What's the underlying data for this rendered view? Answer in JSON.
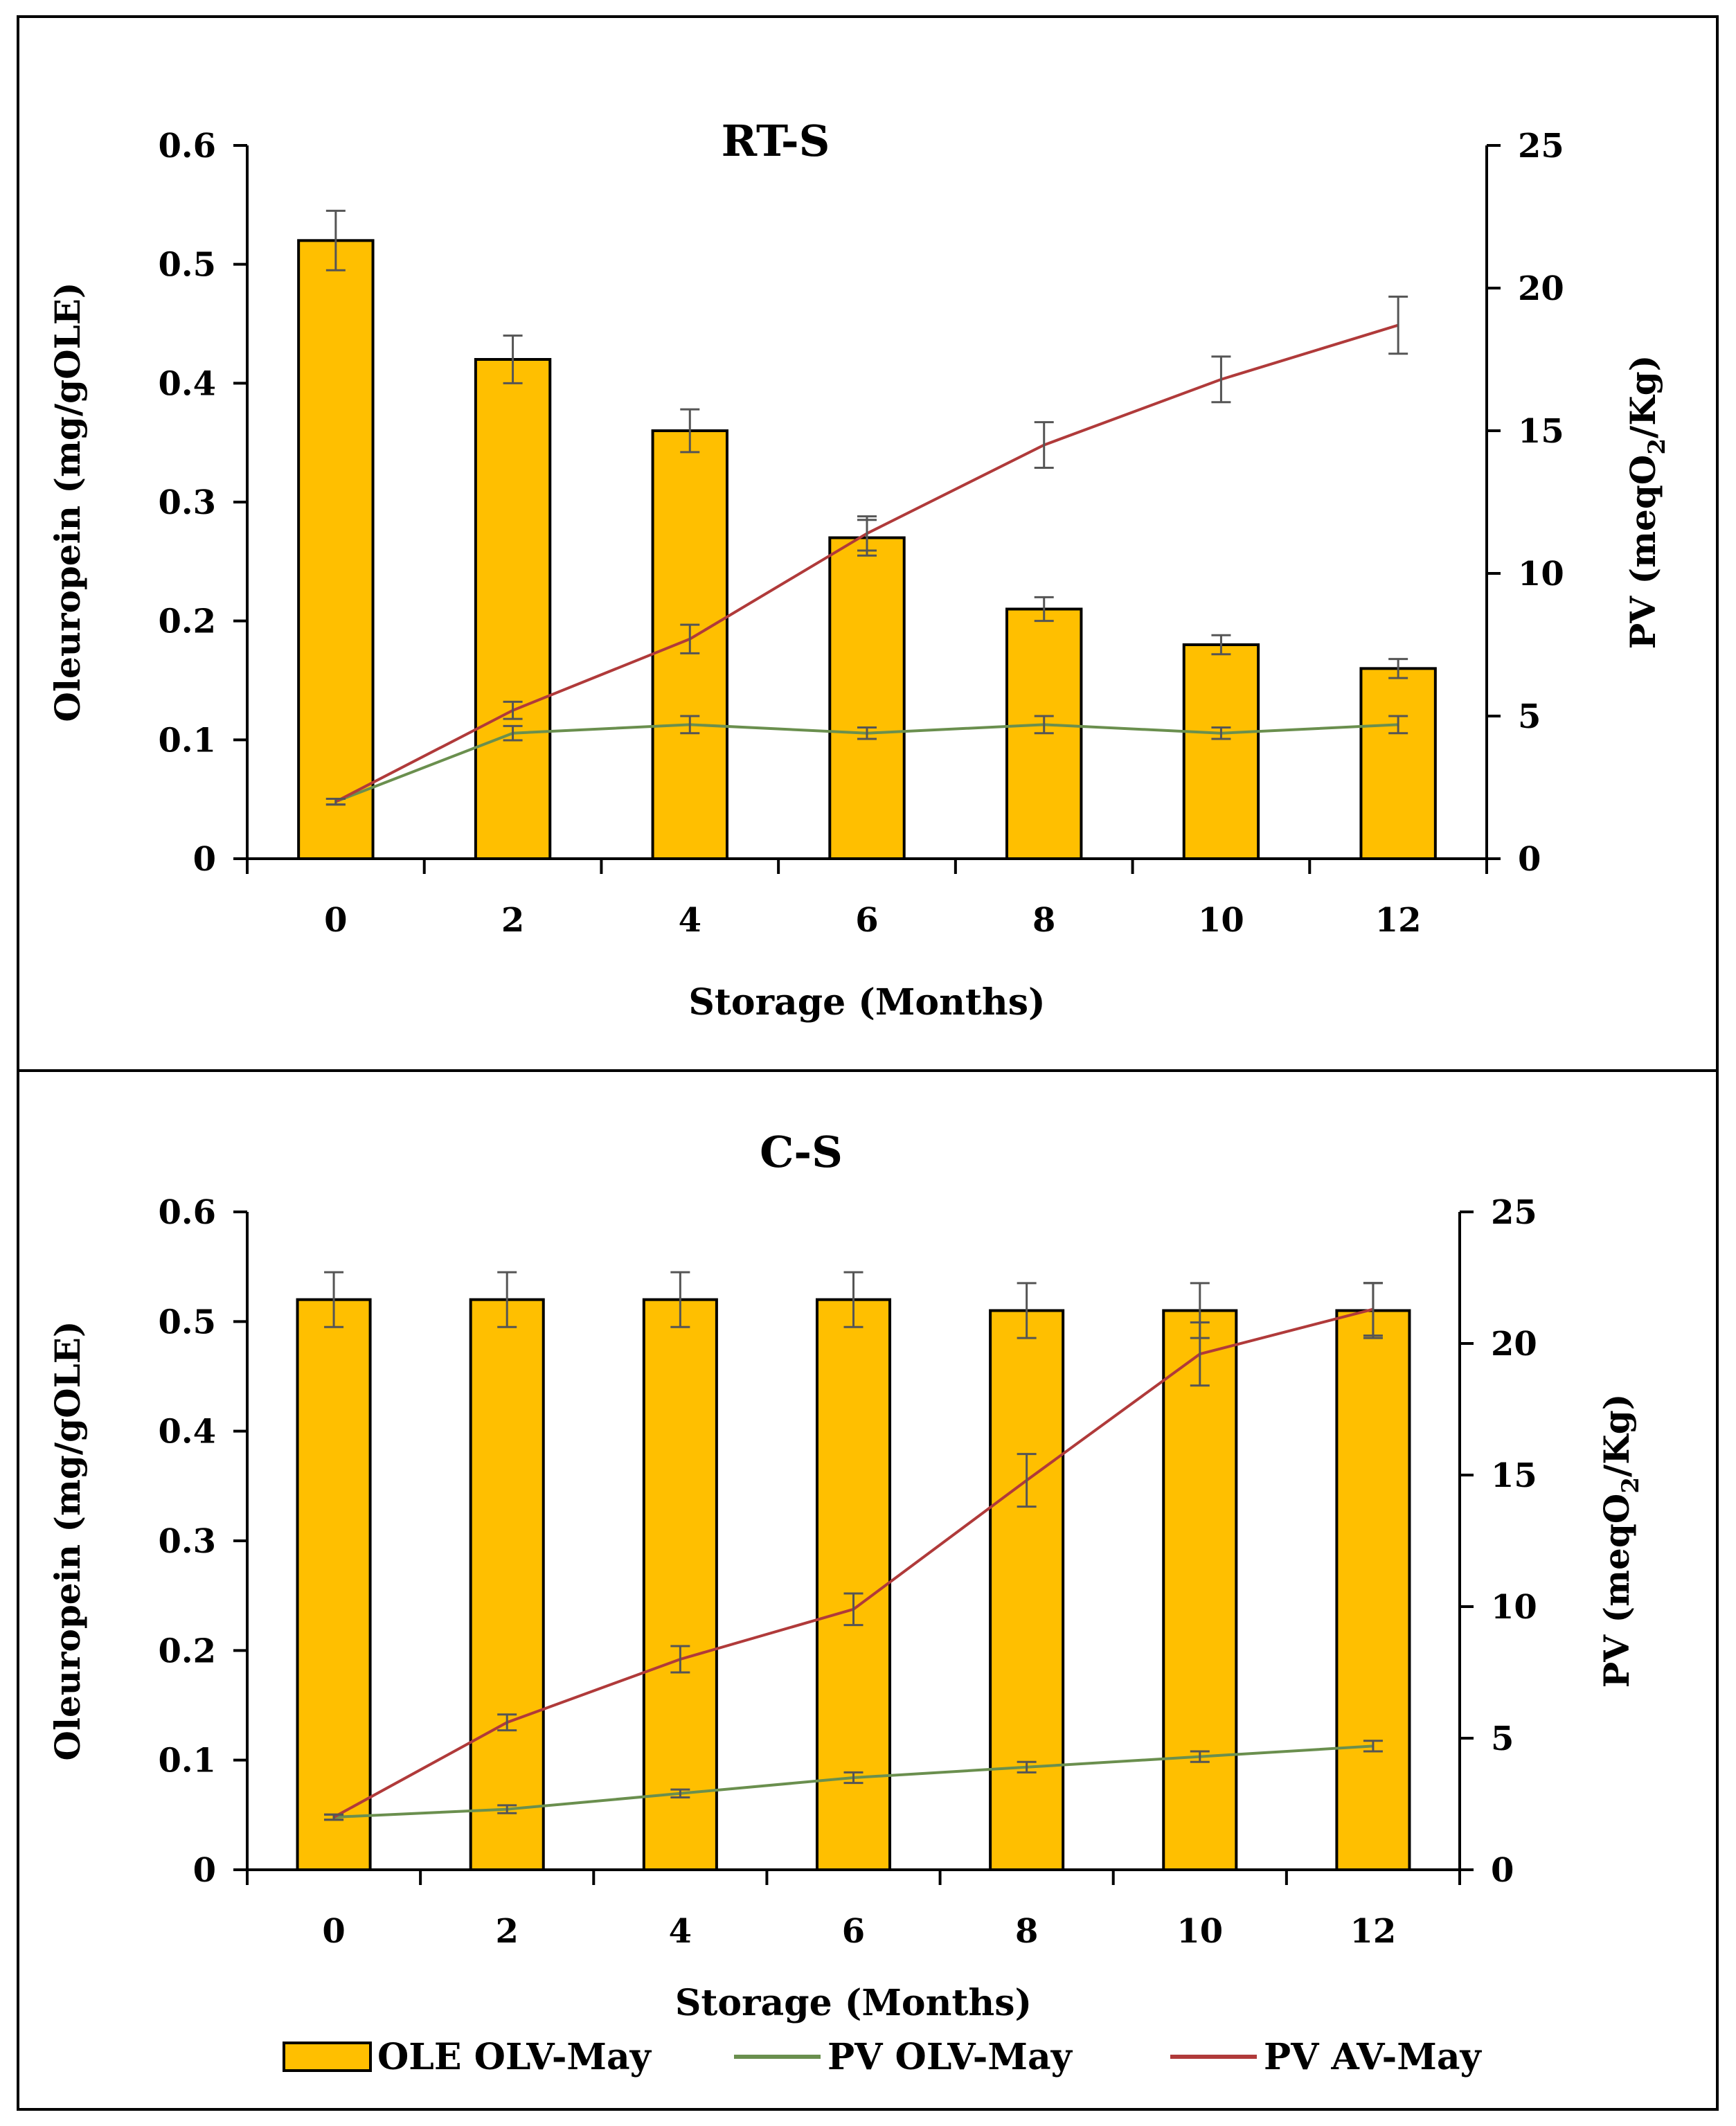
{
  "chart_data": [
    {
      "type": "bar",
      "title": "RT-S",
      "xlabel": "Storage (Months)",
      "ylabel": "Oleuropein (mg/gOLE)",
      "y2label": "PV (meqO2/Kg)",
      "y2label_main": "PV (meqO",
      "y2label_sub": "2",
      "y2label_end": "/Kg)",
      "categories": [
        "0",
        "2",
        "4",
        "6",
        "8",
        "10",
        "12"
      ],
      "ylim": [
        0,
        0.6
      ],
      "yticks": [
        "0",
        "0.1",
        "0.2",
        "0.3",
        "0.4",
        "0.5",
        "0.6"
      ],
      "y2lim": [
        0,
        25
      ],
      "y2ticks": [
        "0",
        "5",
        "10",
        "15",
        "20",
        "25"
      ],
      "series": [
        {
          "name": "OLE OLV-May",
          "axis": "left",
          "kind": "bar",
          "color": "#FFBF00",
          "values": [
            0.52,
            0.42,
            0.36,
            0.27,
            0.21,
            0.18,
            0.16
          ],
          "errors": [
            0.025,
            0.02,
            0.018,
            0.015,
            0.01,
            0.008,
            0.008
          ]
        },
        {
          "name": "PV OLV-May",
          "axis": "right",
          "kind": "line",
          "color": "#6a8f4e",
          "values": [
            2.0,
            4.4,
            4.7,
            4.4,
            4.7,
            4.4,
            4.7
          ],
          "errors": [
            0.1,
            0.25,
            0.3,
            0.2,
            0.3,
            0.2,
            0.3
          ]
        },
        {
          "name": "PV AV-May",
          "axis": "right",
          "kind": "line",
          "color": "#b03a3a",
          "values": [
            2.0,
            5.2,
            7.7,
            11.4,
            14.5,
            16.8,
            18.7
          ],
          "errors": [
            0.1,
            0.3,
            0.5,
            0.6,
            0.8,
            0.8,
            1.0
          ]
        }
      ]
    },
    {
      "type": "bar",
      "title": "C-S",
      "xlabel": "Storage (Months)",
      "ylabel": "Oleuropein (mg/gOLE)",
      "y2label": "PV (meqO2/Kg)",
      "y2label_main": "PV (meqO",
      "y2label_sub": "2",
      "y2label_end": "/Kg)",
      "categories": [
        "0",
        "2",
        "4",
        "6",
        "8",
        "10",
        "12"
      ],
      "ylim": [
        0,
        0.6
      ],
      "yticks": [
        "0",
        "0.1",
        "0.2",
        "0.3",
        "0.4",
        "0.5",
        "0.6"
      ],
      "y2lim": [
        0,
        25
      ],
      "y2ticks": [
        "0",
        "5",
        "10",
        "15",
        "20",
        "25"
      ],
      "series": [
        {
          "name": "OLE OLV-May",
          "axis": "left",
          "kind": "bar",
          "color": "#FFBF00",
          "values": [
            0.52,
            0.52,
            0.52,
            0.52,
            0.51,
            0.51,
            0.51
          ],
          "errors": [
            0.025,
            0.025,
            0.025,
            0.025,
            0.025,
            0.025,
            0.025
          ]
        },
        {
          "name": "PV OLV-May",
          "axis": "right",
          "kind": "line",
          "color": "#6a8f4e",
          "values": [
            2.0,
            2.3,
            2.9,
            3.5,
            3.9,
            4.3,
            4.7
          ],
          "errors": [
            0.1,
            0.15,
            0.15,
            0.2,
            0.2,
            0.2,
            0.2
          ]
        },
        {
          "name": "PV AV-May",
          "axis": "right",
          "kind": "line",
          "color": "#b03a3a",
          "values": [
            2.0,
            5.6,
            8.0,
            9.9,
            14.8,
            19.6,
            21.3
          ],
          "errors": [
            0.1,
            0.3,
            0.5,
            0.6,
            1.0,
            1.2,
            1.0
          ]
        }
      ]
    }
  ],
  "legend": [
    {
      "label": "OLE OLV-May",
      "kind": "bar",
      "color": "#FFBF00"
    },
    {
      "label": "PV OLV-May",
      "kind": "line",
      "color": "#6a8f4e"
    },
    {
      "label": "PV AV-May",
      "kind": "line",
      "color": "#b03a3a"
    }
  ]
}
